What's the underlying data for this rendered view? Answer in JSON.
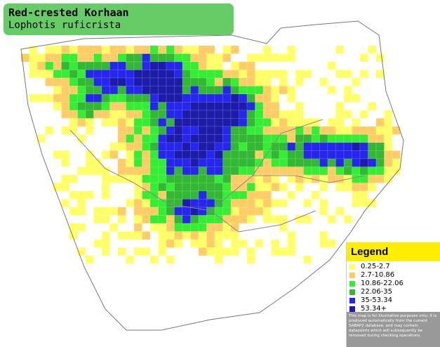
{
  "header": {
    "title": "Red-crested Korhaan",
    "subtitle": "Lophotis ruficrista"
  },
  "legend": {
    "title": "Legend",
    "items": [
      {
        "label": "0.25-2.7",
        "color": "#ffff66"
      },
      {
        "label": "2.7-10.86",
        "color": "#ffcc66"
      },
      {
        "label": "10.86-22.06",
        "color": "#33ee33"
      },
      {
        "label": "22.06-35",
        "color": "#33b833"
      },
      {
        "label": "35-53.34",
        "color": "#2626ee"
      },
      {
        "label": "53.34+",
        "color": "#1c1ca8"
      }
    ],
    "note": "This map is for illustrative purposes only; it is produced automatically from the current SABAP2 database, and may contain datapoints which will subsequently be removed during checking operations."
  }
}
